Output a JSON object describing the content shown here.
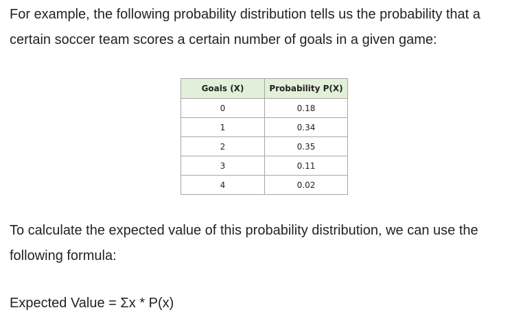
{
  "intro_text": "For example, the following probability distribution tells us the probability that a certain soccer team scores a certain number of goals in a given game:",
  "table": {
    "headers": [
      "Goals (X)",
      "Probability P(X)"
    ],
    "rows": [
      [
        "0",
        "0.18"
      ],
      [
        "1",
        "0.34"
      ],
      [
        "2",
        "0.35"
      ],
      [
        "3",
        "0.11"
      ],
      [
        "4",
        "0.02"
      ]
    ],
    "header_color": "#e2efd9"
  },
  "calc_text": "To calculate the expected value of this probability distribution, we can use the following formula:",
  "formula_text": "Expected Value = Σx * P(x)"
}
